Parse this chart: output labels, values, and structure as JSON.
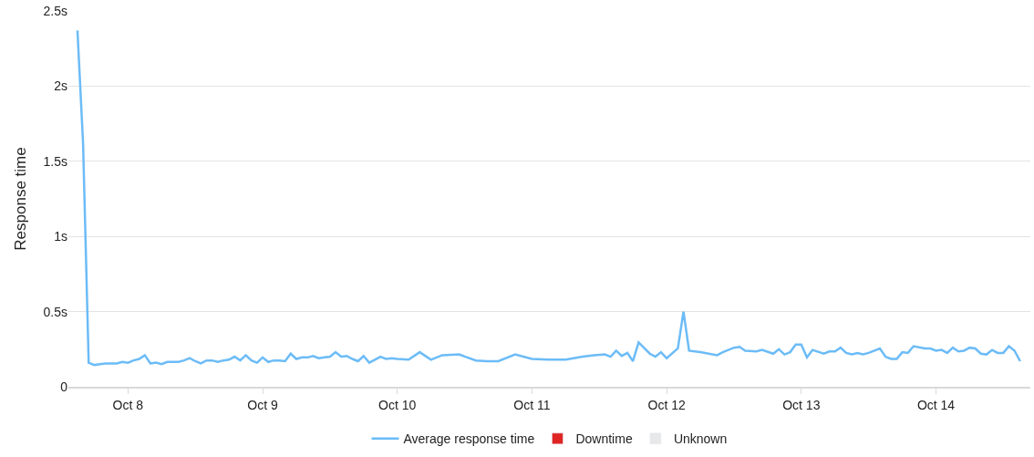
{
  "chart_data": {
    "type": "line",
    "ylabel": "Response time",
    "x": [
      "--10-07T15:00",
      "--10-07T16:00",
      "--10-07T17:00",
      "--10-07T18:00",
      "--10-07T19:00",
      "--10-07T20:00",
      "--10-07T21:00",
      "--10-07T22:00",
      "--10-07T23:00",
      "--10-08T00:00",
      "--10-08T01:00",
      "--10-08T02:00",
      "--10-08T03:00",
      "--10-08T04:00",
      "--10-08T05:00",
      "--10-08T06:00",
      "--10-08T07:00",
      "--10-08T08:00",
      "--10-08T09:00",
      "--10-08T10:00",
      "--10-08T11:00",
      "--10-08T12:00",
      "--10-08T13:00",
      "--10-08T14:00",
      "--10-08T15:00",
      "--10-08T16:00",
      "--10-08T17:00",
      "--10-08T18:00",
      "--10-08T19:00",
      "--10-08T20:00",
      "--10-08T21:00",
      "--10-08T22:00",
      "--10-08T23:00",
      "--10-09T00:00",
      "--10-09T01:00",
      "--10-09T02:00",
      "--10-09T03:00",
      "--10-09T04:00",
      "--10-09T05:00",
      "--10-09T06:00",
      "--10-09T07:00",
      "--10-09T08:00",
      "--10-09T09:00",
      "--10-09T10:00",
      "--10-09T11:00",
      "--10-09T12:00",
      "--10-09T13:00",
      "--10-09T14:00",
      "--10-09T15:00",
      "--10-09T16:00",
      "--10-09T17:00",
      "--10-09T18:00",
      "--10-09T19:00",
      "--10-09T20:00",
      "--10-09T21:00",
      "--10-09T22:00",
      "--10-09T23:00",
      "--10-10T00:00",
      "--10-10T02:00",
      "--10-10T04:00",
      "--10-10T06:00",
      "--10-10T08:00",
      "--10-10T11:00",
      "--10-10T14:00",
      "--10-10T16:00",
      "--10-10T18:00",
      "--10-10T21:00",
      "--10-11T00:00",
      "--10-11T03:00",
      "--10-11T06:00",
      "--10-11T09:00",
      "--10-11T11:00",
      "--10-11T13:00",
      "--10-11T14:00",
      "--10-11T15:00",
      "--10-11T16:00",
      "--10-11T17:00",
      "--10-11T18:00",
      "--10-11T19:00",
      "--10-11T21:00",
      "--10-11T22:00",
      "--10-11T23:00",
      "--10-12T00:00",
      "--10-12T02:00",
      "--10-12T03:00",
      "--10-12T04:00",
      "--10-12T06:00",
      "--10-12T09:00",
      "--10-12T10:00",
      "--10-12T12:00",
      "--10-12T13:00",
      "--10-12T14:00",
      "--10-12T16:00",
      "--10-12T17:00",
      "--10-12T19:00",
      "--10-12T20:00",
      "--10-12T21:00",
      "--10-12T22:00",
      "--10-12T23:00",
      "--10-13T00:00",
      "--10-13T01:00",
      "--10-13T02:00",
      "--10-13T04:00",
      "--10-13T05:00",
      "--10-13T06:00",
      "--10-13T07:00",
      "--10-13T08:00",
      "--10-13T09:00",
      "--10-13T10:00",
      "--10-13T11:00",
      "--10-13T12:00",
      "--10-13T14:00",
      "--10-13T15:00",
      "--10-13T16:00",
      "--10-13T17:00",
      "--10-13T18:00",
      "--10-13T19:00",
      "--10-13T20:00",
      "--10-13T22:00",
      "--10-13T23:00",
      "--10-14T00:00",
      "--10-14T01:00",
      "--10-14T02:00",
      "--10-14T03:00",
      "--10-14T04:00",
      "--10-14T05:00",
      "--10-14T06:00",
      "--10-14T07:00",
      "--10-14T08:00",
      "--10-14T09:00",
      "--10-14T10:00",
      "--10-14T11:00",
      "--10-14T12:00",
      "--10-14T13:00",
      "--10-14T14:00",
      "--10-14T15:00"
    ],
    "series": [
      {
        "name": "Average response time",
        "color": "#6cbcf7",
        "values": [
          2.37,
          1.62,
          0.16,
          0.145,
          0.15,
          0.155,
          0.155,
          0.155,
          0.165,
          0.16,
          0.175,
          0.185,
          0.21,
          0.155,
          0.16,
          0.15,
          0.165,
          0.165,
          0.165,
          0.175,
          0.19,
          0.17,
          0.155,
          0.175,
          0.175,
          0.165,
          0.175,
          0.18,
          0.2,
          0.175,
          0.21,
          0.175,
          0.16,
          0.195,
          0.165,
          0.175,
          0.175,
          0.17,
          0.22,
          0.185,
          0.195,
          0.195,
          0.205,
          0.19,
          0.195,
          0.2,
          0.23,
          0.2,
          0.205,
          0.185,
          0.17,
          0.205,
          0.16,
          0.18,
          0.2,
          0.185,
          0.19,
          0.185,
          0.18,
          0.23,
          0.18,
          0.21,
          0.215,
          0.175,
          0.17,
          0.17,
          0.215,
          0.185,
          0.18,
          0.18,
          0.2,
          0.21,
          0.215,
          0.2,
          0.24,
          0.205,
          0.225,
          0.17,
          0.295,
          0.22,
          0.2,
          0.23,
          0.19,
          0.255,
          0.5,
          0.24,
          0.23,
          0.21,
          0.23,
          0.26,
          0.265,
          0.24,
          0.235,
          0.245,
          0.22,
          0.25,
          0.215,
          0.23,
          0.28,
          0.28,
          0.195,
          0.245,
          0.22,
          0.235,
          0.235,
          0.26,
          0.225,
          0.215,
          0.225,
          0.215,
          0.225,
          0.255,
          0.2,
          0.185,
          0.185,
          0.23,
          0.225,
          0.27,
          0.255,
          0.255,
          0.24,
          0.245,
          0.225,
          0.26,
          0.235,
          0.24,
          0.26,
          0.255,
          0.22,
          0.215,
          0.245,
          0.225,
          0.225,
          0.27,
          0.24,
          0.17
        ]
      },
      {
        "name": "Downtime",
        "type": "bar",
        "color": "#e02424",
        "values": [
          null,
          null,
          null,
          null,
          null,
          null,
          null,
          null,
          null,
          null,
          null,
          null,
          null,
          null,
          null,
          null,
          null,
          null,
          null,
          null,
          null,
          null,
          null,
          null,
          null,
          null,
          null,
          null,
          null,
          null,
          null,
          null,
          null,
          null,
          null,
          null,
          null,
          null,
          null,
          null,
          null,
          null,
          null,
          null,
          null,
          null,
          null,
          null,
          null,
          null,
          null,
          null,
          null,
          null,
          null,
          null,
          null,
          null,
          null,
          null,
          null,
          null,
          null,
          null,
          null,
          null,
          null,
          null,
          null,
          null,
          null,
          null,
          null,
          null,
          null,
          null,
          null,
          null,
          null,
          null,
          null,
          null,
          null,
          null,
          null,
          null,
          null,
          null,
          null,
          null,
          null,
          null,
          null,
          null,
          null,
          null,
          null,
          null,
          null,
          null,
          null,
          null,
          null,
          null,
          null,
          null,
          null,
          null,
          null,
          null,
          null,
          null,
          null,
          null,
          null,
          null,
          null,
          null,
          null,
          null,
          null,
          null,
          null,
          null,
          null,
          null,
          null,
          null,
          null,
          null,
          null,
          null,
          null,
          null,
          null,
          null
        ]
      },
      {
        "name": "Unknown",
        "type": "bar",
        "color": "#e8e8e8",
        "values": [
          null,
          null,
          null,
          null,
          null,
          null,
          null,
          null,
          null,
          null,
          null,
          null,
          null,
          null,
          null,
          null,
          null,
          null,
          null,
          null,
          null,
          null,
          null,
          null,
          null,
          null,
          null,
          null,
          null,
          null,
          null,
          null,
          null,
          null,
          null,
          null,
          null,
          null,
          null,
          null,
          null,
          null,
          null,
          null,
          null,
          null,
          null,
          null,
          null,
          null,
          null,
          null,
          null,
          null,
          null,
          null,
          null,
          null,
          null,
          null,
          null,
          null,
          null,
          null,
          null,
          null,
          null,
          null,
          null,
          null,
          null,
          null,
          null,
          null,
          null,
          null,
          null,
          null,
          null,
          null,
          null,
          null,
          null,
          null,
          null,
          null,
          null,
          null,
          null,
          null,
          null,
          null,
          null,
          null,
          null,
          null,
          null,
          null,
          null,
          null,
          null,
          null,
          null,
          null,
          null,
          null,
          null,
          null,
          null,
          null,
          null,
          null,
          null,
          null,
          null,
          null,
          null,
          null,
          null,
          null,
          null,
          null,
          null,
          null,
          null,
          null,
          null,
          null,
          null,
          null,
          null,
          null,
          null,
          null,
          null,
          null
        ]
      }
    ],
    "xlim": [
      "--10-07T13:23",
      "--10-14T16:49"
    ],
    "xticks": [
      {
        "value": "--10-08",
        "label": "Oct 8"
      },
      {
        "value": "--10-09",
        "label": "Oct 9"
      },
      {
        "value": "--10-10",
        "label": "Oct 10"
      },
      {
        "value": "--10-11",
        "label": "Oct 11"
      },
      {
        "value": "--10-12",
        "label": "Oct 12"
      },
      {
        "value": "--10-13",
        "label": "Oct 13"
      },
      {
        "value": "--10-14",
        "label": "Oct 14"
      }
    ],
    "ylim": [
      0,
      2.5
    ],
    "yticks": [
      0,
      {
        "value": 0.5,
        "label": "0.5s"
      },
      {
        "value": 1,
        "label": "1s"
      },
      {
        "value": 1.5,
        "label": "1.5s"
      },
      {
        "value": 2,
        "label": "2s"
      },
      {
        "value": 2.5,
        "label": "2.5s"
      }
    ],
    "grid": "y",
    "legend": "bottom",
    "marker": "none",
    "line_style": "solid"
  }
}
